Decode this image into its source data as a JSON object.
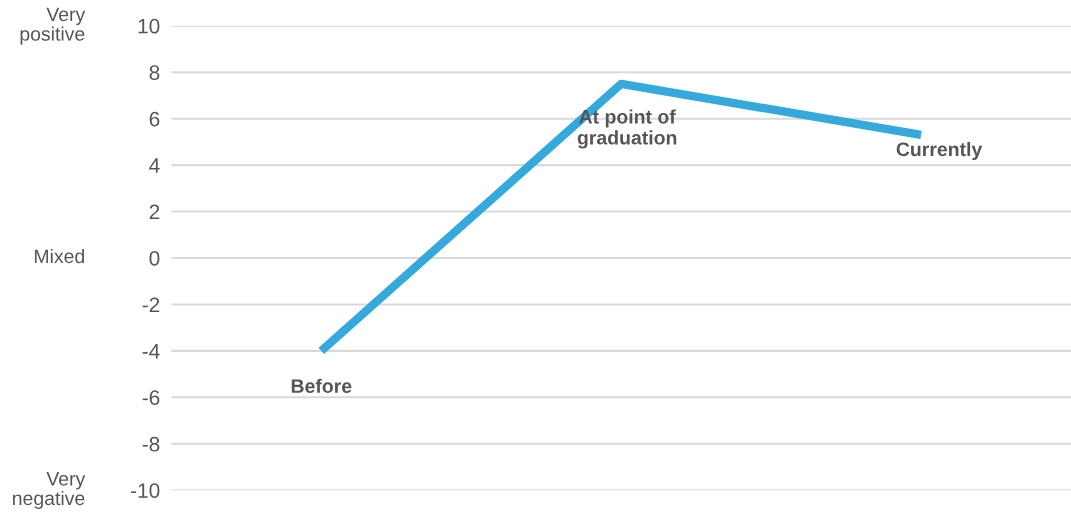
{
  "chart_data": {
    "type": "line",
    "categories": [
      "Before",
      "At point of\ngraduation",
      "Currently"
    ],
    "series": [
      {
        "color": "#35a8dc",
        "values": [
          -4,
          7.5,
          5.3
        ]
      }
    ],
    "ylim": [
      -10,
      10
    ],
    "yticks": [
      -10,
      -8,
      -6,
      -4,
      -2,
      0,
      2,
      4,
      6,
      8,
      10
    ],
    "annotations": [
      "Very\npositive",
      "Mixed",
      "Very\nnegative"
    ],
    "grid": "y",
    "legend": false,
    "marker": "none",
    "line_style": "solid",
    "tick_labels": "y"
  }
}
